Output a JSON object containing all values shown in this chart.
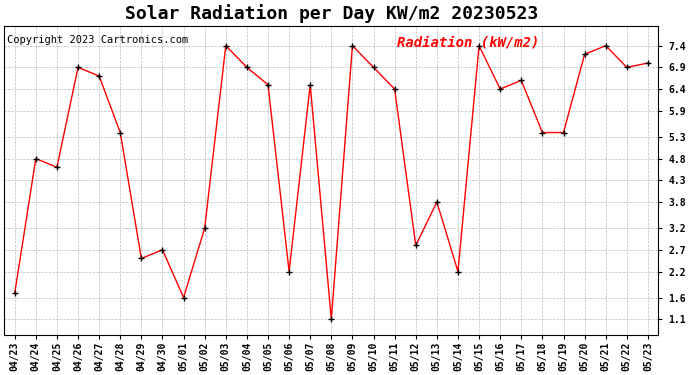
{
  "title": "Solar Radiation per Day KW/m2 20230523",
  "copyright": "Copyright 2023 Cartronics.com",
  "legend_label": "Radiation (kW/m2)",
  "x_labels": [
    "04/23",
    "04/24",
    "04/25",
    "04/26",
    "04/27",
    "04/28",
    "04/29",
    "04/30",
    "05/01",
    "05/02",
    "05/03",
    "05/04",
    "05/05",
    "05/06",
    "05/07",
    "05/08",
    "05/09",
    "05/10",
    "05/11",
    "05/12",
    "05/13",
    "05/14",
    "05/15",
    "05/16",
    "05/17",
    "05/18",
    "05/19",
    "05/20",
    "05/21",
    "05/22",
    "05/23"
  ],
  "y_values": [
    1.7,
    4.8,
    4.6,
    6.9,
    6.7,
    5.4,
    2.5,
    2.7,
    1.6,
    3.2,
    7.4,
    6.9,
    6.5,
    2.2,
    6.5,
    1.1,
    7.4,
    6.9,
    6.4,
    2.8,
    3.8,
    2.2,
    7.4,
    6.4,
    6.6,
    5.4,
    5.4,
    7.2,
    7.4,
    6.9,
    7.0
  ],
  "y_ticks": [
    1.1,
    1.6,
    2.2,
    2.7,
    3.2,
    3.8,
    4.3,
    4.8,
    5.3,
    5.9,
    6.4,
    6.9,
    7.4
  ],
  "ylim": [
    0.75,
    7.85
  ],
  "line_color": "red",
  "marker_color": "black",
  "grid_color": "#bbbbbb",
  "background_color": "#ffffff",
  "title_fontsize": 13,
  "label_fontsize": 7,
  "copyright_fontsize": 7.5,
  "legend_fontsize": 10
}
